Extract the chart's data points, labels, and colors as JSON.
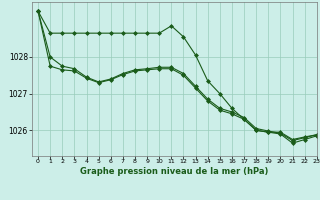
{
  "title": "Graphe pression niveau de la mer (hPa)",
  "bg_color": "#cceee8",
  "grid_color": "#99ccbb",
  "line_color": "#1a5c1a",
  "xlim": [
    -0.5,
    23
  ],
  "ylim": [
    1025.3,
    1029.5
  ],
  "yticks": [
    1026,
    1027,
    1028
  ],
  "xticks": [
    0,
    1,
    2,
    3,
    4,
    5,
    6,
    7,
    8,
    9,
    10,
    11,
    12,
    13,
    14,
    15,
    16,
    17,
    18,
    19,
    20,
    21,
    22,
    23
  ],
  "series1_x": [
    0,
    1,
    2,
    3,
    4,
    5,
    6,
    7,
    8,
    9,
    10,
    11,
    12,
    13,
    14,
    15,
    16,
    17,
    18,
    19,
    20,
    21,
    22,
    23
  ],
  "series1_y": [
    1029.25,
    1028.65,
    1028.65,
    1028.65,
    1028.65,
    1028.65,
    1028.65,
    1028.65,
    1028.65,
    1028.65,
    1028.65,
    1028.85,
    1028.55,
    1028.05,
    1027.35,
    1027.0,
    1026.6,
    1026.3,
    1026.0,
    1025.95,
    1025.95,
    1025.75,
    1025.82,
    1025.88
  ],
  "series2_x": [
    0,
    1,
    2,
    3,
    4,
    5,
    6,
    7,
    8,
    9,
    10,
    11,
    12,
    13,
    14,
    15,
    16,
    17,
    18,
    19,
    20,
    21,
    22,
    23
  ],
  "series2_y": [
    1029.25,
    1028.0,
    1027.75,
    1027.68,
    1027.45,
    1027.32,
    1027.4,
    1027.55,
    1027.65,
    1027.68,
    1027.72,
    1027.72,
    1027.55,
    1027.2,
    1026.85,
    1026.6,
    1026.5,
    1026.35,
    1026.05,
    1025.98,
    1025.92,
    1025.72,
    1025.8,
    1025.88
  ],
  "series3_x": [
    0,
    1,
    2,
    3,
    4,
    5,
    6,
    7,
    8,
    9,
    10,
    11,
    12,
    13,
    14,
    15,
    16,
    17,
    18,
    19,
    20,
    21,
    22,
    23
  ],
  "series3_y": [
    1029.25,
    1027.75,
    1027.65,
    1027.62,
    1027.42,
    1027.3,
    1027.38,
    1027.52,
    1027.62,
    1027.65,
    1027.68,
    1027.68,
    1027.5,
    1027.15,
    1026.8,
    1026.55,
    1026.45,
    1026.3,
    1026.0,
    1025.95,
    1025.9,
    1025.65,
    1025.75,
    1025.85
  ]
}
